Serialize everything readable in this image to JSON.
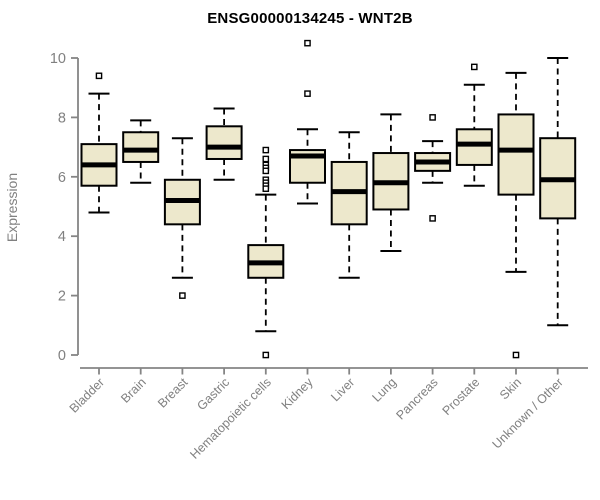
{
  "chart_data": {
    "type": "boxplot",
    "title": "ENSG00000134245 - WNT2B",
    "ylabel": "Expression",
    "xlabel": "",
    "ylim": [
      0,
      10
    ],
    "yticks": [
      0,
      2,
      4,
      6,
      8,
      10
    ],
    "grid": false,
    "legend": null,
    "colors": {
      "box_fill": "#EDE8CC",
      "box_stroke": "#000000",
      "median": "#000000",
      "whisker": "#000000",
      "outlier_fill": "#ffffff",
      "outlier_stroke": "#000000",
      "axis": "#858585",
      "tick_label": "#808080",
      "title": "#000000"
    },
    "categories": [
      "Bladder",
      "Brain",
      "Breast",
      "Gastric",
      "Hematopoietic cells",
      "Kidney",
      "Liver",
      "Lung",
      "Pancreas",
      "Prostate",
      "Skin",
      "Unknown / Other"
    ],
    "boxes": [
      {
        "category": "Bladder",
        "whisker_low": 4.8,
        "q1": 5.7,
        "median": 6.4,
        "q3": 7.1,
        "whisker_high": 8.8,
        "outliers": [
          9.4
        ]
      },
      {
        "category": "Brain",
        "whisker_low": 5.8,
        "q1": 6.5,
        "median": 6.9,
        "q3": 7.5,
        "whisker_high": 7.9,
        "outliers": []
      },
      {
        "category": "Breast",
        "whisker_low": 2.6,
        "q1": 4.4,
        "median": 5.2,
        "q3": 5.9,
        "whisker_high": 7.3,
        "outliers": [
          2.0
        ]
      },
      {
        "category": "Gastric",
        "whisker_low": 5.9,
        "q1": 6.6,
        "median": 7.0,
        "q3": 7.7,
        "whisker_high": 8.3,
        "outliers": []
      },
      {
        "category": "Hematopoietic cells",
        "whisker_low": 0.8,
        "q1": 2.6,
        "median": 3.1,
        "q3": 3.7,
        "whisker_high": 5.4,
        "outliers": [
          6.9,
          6.6,
          6.4,
          6.3,
          6.2,
          5.9,
          5.8,
          5.7,
          5.6,
          0.0
        ]
      },
      {
        "category": "Kidney",
        "whisker_low": 5.1,
        "q1": 5.8,
        "median": 6.7,
        "q3": 6.9,
        "whisker_high": 7.6,
        "outliers": [
          10.5,
          8.8
        ]
      },
      {
        "category": "Liver",
        "whisker_low": 2.6,
        "q1": 4.4,
        "median": 5.5,
        "q3": 6.5,
        "whisker_high": 7.5,
        "outliers": []
      },
      {
        "category": "Lung",
        "whisker_low": 3.5,
        "q1": 4.9,
        "median": 5.8,
        "q3": 6.8,
        "whisker_high": 8.1,
        "outliers": []
      },
      {
        "category": "Pancreas",
        "whisker_low": 5.8,
        "q1": 6.2,
        "median": 6.5,
        "q3": 6.8,
        "whisker_high": 7.2,
        "outliers": [
          8.0,
          4.6
        ]
      },
      {
        "category": "Prostate",
        "whisker_low": 5.7,
        "q1": 6.4,
        "median": 7.1,
        "q3": 7.6,
        "whisker_high": 9.1,
        "outliers": [
          9.7
        ]
      },
      {
        "category": "Skin",
        "whisker_low": 2.8,
        "q1": 5.4,
        "median": 6.9,
        "q3": 8.1,
        "whisker_high": 9.5,
        "outliers": [
          0.0
        ]
      },
      {
        "category": "Unknown / Other",
        "whisker_low": 1.0,
        "q1": 4.6,
        "median": 5.9,
        "q3": 7.3,
        "whisker_high": 10.0,
        "outliers": []
      }
    ]
  }
}
